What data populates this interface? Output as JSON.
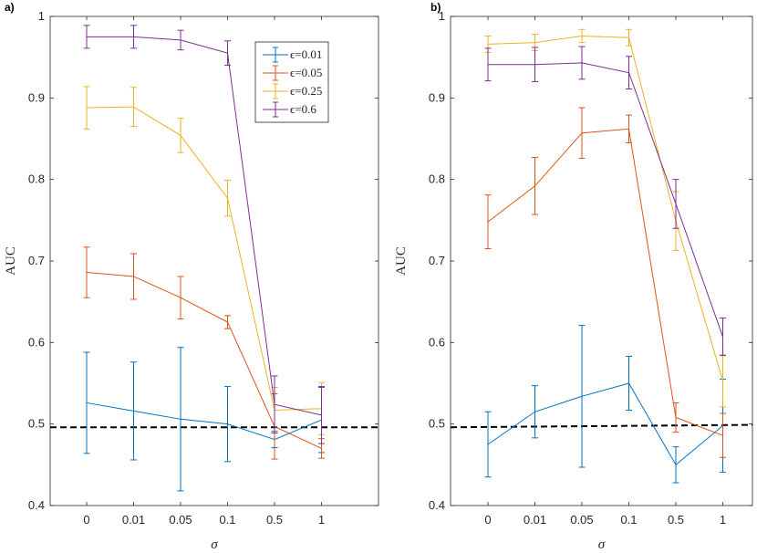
{
  "chart_data": [
    {
      "type": "line",
      "panel_label": "a)",
      "xlabel": "σ",
      "ylabel": "AUC",
      "categories": [
        "0",
        "0.01",
        "0.05",
        "0.1",
        "0.5",
        "1"
      ],
      "ylim": [
        0.4,
        1.0
      ],
      "yticks": [
        "0.4",
        "0.5",
        "0.6",
        "0.7",
        "0.8",
        "0.9",
        "1"
      ],
      "baseline": 0.496,
      "baseline_end": 0.496,
      "legend_position": "top-right",
      "series": [
        {
          "name": "ϵ=0.01",
          "color": "#0072BD",
          "values": [
            0.526,
            0.516,
            0.506,
            0.5,
            0.481,
            0.505
          ],
          "errors": [
            0.062,
            0.06,
            0.088,
            0.046,
            0.01,
            0.04
          ]
        },
        {
          "name": "ϵ=0.05",
          "color": "#D95319",
          "values": [
            0.686,
            0.681,
            0.655,
            0.625,
            0.497,
            0.47
          ],
          "errors": [
            0.031,
            0.028,
            0.026,
            0.008,
            0.04,
            0.012
          ]
        },
        {
          "name": "ϵ=0.25",
          "color": "#EDB120",
          "values": [
            0.888,
            0.889,
            0.854,
            0.777,
            0.517,
            0.519
          ],
          "errors": [
            0.026,
            0.024,
            0.021,
            0.022,
            0.028,
            0.032
          ]
        },
        {
          "name": "ϵ=0.6",
          "color": "#7E2F8E",
          "values": [
            0.975,
            0.975,
            0.971,
            0.955,
            0.524,
            0.511
          ],
          "errors": [
            0.014,
            0.014,
            0.012,
            0.015,
            0.035,
            0.035
          ]
        }
      ]
    },
    {
      "type": "line",
      "panel_label": "b)",
      "xlabel": "σ",
      "ylabel": "AUC",
      "categories": [
        "0",
        "0.01",
        "0.05",
        "0.1",
        "0.5",
        "1"
      ],
      "ylim": [
        0.4,
        1.0
      ],
      "yticks": [
        "0.4",
        "0.5",
        "0.6",
        "0.7",
        "0.8",
        "0.9",
        "1"
      ],
      "baseline": 0.496,
      "baseline_end": 0.499,
      "series": [
        {
          "name": "ϵ=0.01",
          "color": "#0072BD",
          "values": [
            0.475,
            0.515,
            0.534,
            0.55,
            0.45,
            0.498
          ],
          "errors": [
            0.04,
            0.032,
            0.087,
            0.033,
            0.022,
            0.057
          ]
        },
        {
          "name": "ϵ=0.05",
          "color": "#D95319",
          "values": [
            0.748,
            0.792,
            0.857,
            0.862,
            0.508,
            0.486
          ],
          "errors": [
            0.033,
            0.035,
            0.031,
            0.017,
            0.018,
            0.027
          ]
        },
        {
          "name": "ϵ=0.25",
          "color": "#EDB120",
          "values": [
            0.966,
            0.968,
            0.976,
            0.974,
            0.749,
            0.553
          ],
          "errors": [
            0.01,
            0.01,
            0.008,
            0.01,
            0.036,
            0.032
          ]
        },
        {
          "name": "ϵ=0.6",
          "color": "#7E2F8E",
          "values": [
            0.941,
            0.941,
            0.943,
            0.931,
            0.77,
            0.607
          ],
          "errors": [
            0.02,
            0.021,
            0.02,
            0.02,
            0.03,
            0.023
          ]
        }
      ]
    }
  ]
}
